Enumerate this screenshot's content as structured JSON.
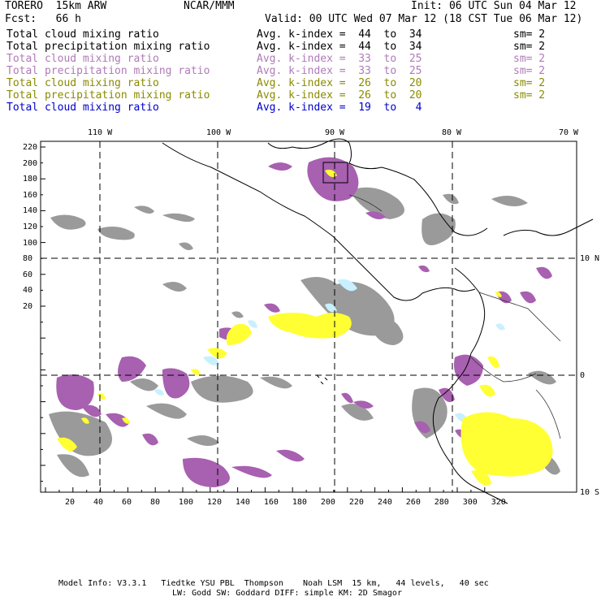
{
  "header": {
    "model": "TORERO  15km ARW",
    "center": "NCAR/MMM",
    "init": "Init: 06 UTC Sun 04 Mar 12",
    "fcst": "Fcst:   66 h",
    "valid": "Valid: 00 UTC Wed 07 Mar 12 (18 CST Tue 06 Mar 12)"
  },
  "legend": [
    {
      "field": "Total cloud mixing ratio",
      "kindex": "Avg. k-index =  44  to  34",
      "sm": "sm= 2",
      "color": "#000000"
    },
    {
      "field": "Total precipitation mixing ratio",
      "kindex": "Avg. k-index =  44  to  34",
      "sm": "sm= 2",
      "color": "#000000"
    },
    {
      "field": "Total cloud mixing ratio",
      "kindex": "Avg. k-index =  33  to  25",
      "sm": "sm= 2",
      "color": "#b07ab8"
    },
    {
      "field": "Total precipitation mixing ratio",
      "kindex": "Avg. k-index =  33  to  25",
      "sm": "sm= 2",
      "color": "#b07ab8"
    },
    {
      "field": "Total cloud mixing ratio",
      "kindex": "Avg. k-index =  26  to  20",
      "sm": "sm= 2",
      "color": "#8a8a00"
    },
    {
      "field": "Total precipitation mixing ratio",
      "kindex": "Avg. k-index =  26  to  20",
      "sm": "sm= 2",
      "color": "#8a8a00"
    },
    {
      "field": "Total cloud mixing ratio",
      "kindex": "Avg. k-index =  19  to   4",
      "sm": "",
      "color": "#0000cc"
    }
  ],
  "map": {
    "lon_labels": [
      "110 W",
      "100 W",
      "90 W",
      "80 W",
      "70 W"
    ],
    "lat_labels": [
      "10 N",
      "0",
      "10 S"
    ],
    "y_ticks": [
      "220",
      "200",
      "180",
      "160",
      "140",
      "120",
      "100",
      "80",
      "60",
      "40",
      "20"
    ],
    "x_ticks": [
      "20",
      "40",
      "60",
      "80",
      "100",
      "120",
      "140",
      "160",
      "180",
      "200",
      "220",
      "240",
      "260",
      "280",
      "300",
      "320"
    ],
    "colors": {
      "gray": "#9a9a9a",
      "purple": "#a860b0",
      "yellow": "#ffff33",
      "cyan": "#c8f0ff"
    }
  },
  "footer": {
    "line1": "Model Info: V3.3.1   Tiedtke YSU PBL  Thompson    Noah LSM  15 km,   44 levels,   40 sec",
    "line2": "LW: Godd SW: Goddard DIFF: simple KM: 2D Smagor"
  }
}
